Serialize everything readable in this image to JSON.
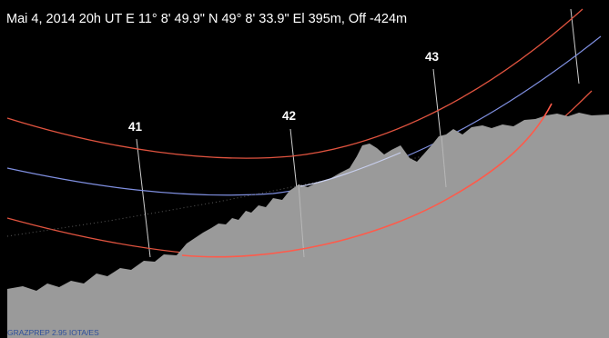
{
  "header": {
    "info_line": "Mai 4, 2014 20h UT E 11° 8' 49.9\"  N 49° 8' 33.9\"   El 395m, Off -424m"
  },
  "azimuth_labels": [
    "41",
    "42",
    "43"
  ],
  "footer": {
    "credit": "GRAZPREP 2.95  IOTA/ES"
  },
  "colors": {
    "sky": "#000000",
    "terrain": "#9a9a9a",
    "altitude_circle": "#e0533f",
    "horizon_red": "#ff5a4a",
    "ecliptic_blue": "#6f7fd8",
    "azimuth_tick": "#cfcfcf",
    "text": "#ffffff",
    "credit": "#2f4f9a"
  }
}
